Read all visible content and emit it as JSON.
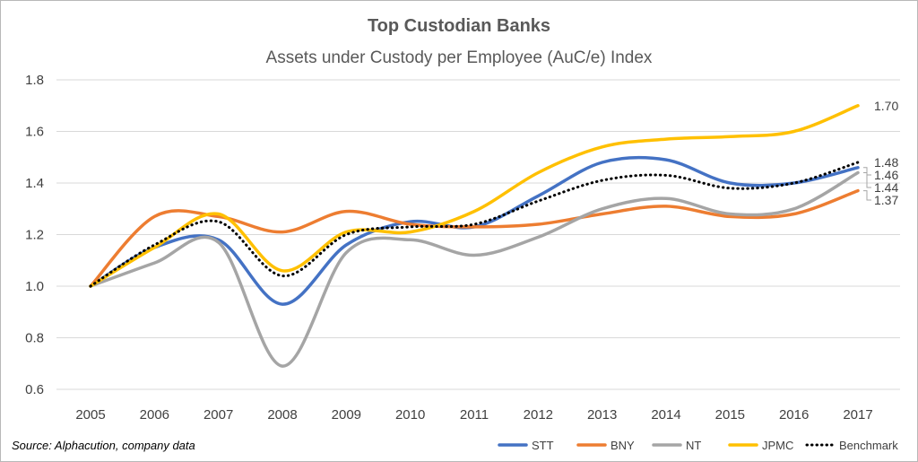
{
  "chart_data": {
    "type": "line",
    "title": "Top Custodian Banks",
    "subtitle": "Assets under Custody per Employee (AuC/e) Index",
    "xlabel": "",
    "ylabel": "",
    "categories": [
      "2005",
      "2006",
      "2007",
      "2008",
      "2009",
      "2010",
      "2011",
      "2012",
      "2013",
      "2014",
      "2015",
      "2016",
      "2017"
    ],
    "y_ticks": [
      "0.6",
      "0.8",
      "1.0",
      "1.2",
      "1.4",
      "1.6",
      "1.8"
    ],
    "ylim": [
      0.6,
      1.8
    ],
    "grid": true,
    "legend_position": "bottom-right",
    "series": [
      {
        "name": "STT",
        "color": "#4472c4",
        "style": "solid",
        "values": [
          1.0,
          1.15,
          1.18,
          0.93,
          1.16,
          1.25,
          1.23,
          1.35,
          1.48,
          1.49,
          1.4,
          1.4,
          1.46
        ]
      },
      {
        "name": "BNY",
        "color": "#ed7d31",
        "style": "solid",
        "values": [
          1.0,
          1.27,
          1.27,
          1.21,
          1.29,
          1.24,
          1.23,
          1.24,
          1.28,
          1.31,
          1.27,
          1.28,
          1.37
        ]
      },
      {
        "name": "NT",
        "color": "#a5a5a5",
        "style": "solid",
        "values": [
          1.0,
          1.09,
          1.17,
          0.69,
          1.13,
          1.18,
          1.12,
          1.19,
          1.3,
          1.34,
          1.28,
          1.3,
          1.44
        ]
      },
      {
        "name": "JPMC",
        "color": "#ffc000",
        "style": "solid",
        "values": [
          1.0,
          1.15,
          1.28,
          1.06,
          1.21,
          1.21,
          1.29,
          1.44,
          1.54,
          1.57,
          1.58,
          1.6,
          1.7
        ]
      },
      {
        "name": "Benchmark",
        "color": "#000000",
        "style": "dotted",
        "values": [
          1.0,
          1.16,
          1.25,
          1.04,
          1.2,
          1.23,
          1.24,
          1.33,
          1.41,
          1.43,
          1.38,
          1.4,
          1.48
        ]
      }
    ],
    "end_labels": [
      {
        "series": "JPMC",
        "text": "1.70"
      },
      {
        "series": "Benchmark",
        "text": "1.48"
      },
      {
        "series": "STT",
        "text": "1.46"
      },
      {
        "series": "NT",
        "text": "1.44"
      },
      {
        "series": "BNY",
        "text": "1.37"
      }
    ],
    "source_note": "Source: Alphacution, company data"
  }
}
